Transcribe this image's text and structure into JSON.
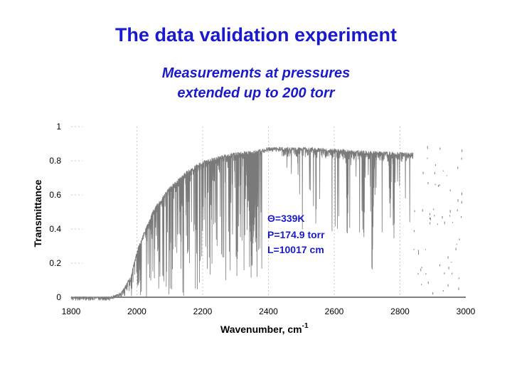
{
  "title": "The data validation experiment",
  "subtitle_lines": [
    "Measurements at pressures",
    "extended up to 200 torr"
  ],
  "colors": {
    "title": "#1a1acc",
    "trace": "#7a7a7a",
    "grid": "#c8c8c8",
    "annotation": "#1a1acc"
  },
  "chart_data": {
    "type": "line",
    "xlabel": "Wavenumber, cm",
    "xlabel_superscript": "-1",
    "ylabel": "Transmittance",
    "xlim": [
      1800,
      3000
    ],
    "ylim": [
      0,
      1
    ],
    "xticks": [
      1800,
      2000,
      2200,
      2400,
      2600,
      2800,
      3000
    ],
    "xtick_labels": [
      "1800",
      "2000",
      "2200",
      "2400",
      "2600",
      "2800",
      "3000"
    ],
    "yticks": [
      0,
      0.2,
      0.4,
      0.6,
      0.8,
      1
    ],
    "ytick_labels": [
      "0",
      "0.2",
      "0.4",
      "0.6",
      "0.8",
      "1"
    ],
    "grid": "vertical dashed at x ticks",
    "annotations": [
      "Θ=339K",
      "P=174.9 torr",
      "L=10017 cm"
    ],
    "envelope": {
      "x": [
        1800,
        1920,
        1950,
        1980,
        2000,
        2050,
        2100,
        2150,
        2200,
        2250,
        2300,
        2350,
        2380,
        2400,
        2500,
        2600,
        2700,
        2800,
        2840
      ],
      "y": [
        0.0,
        0.0,
        0.03,
        0.12,
        0.28,
        0.52,
        0.65,
        0.74,
        0.8,
        0.83,
        0.85,
        0.86,
        0.87,
        0.88,
        0.88,
        0.87,
        0.86,
        0.85,
        0.85
      ]
    },
    "absorption_bands": [
      {
        "x_center": 2350,
        "half_width": 18,
        "min_transmittance": 0.15
      },
      {
        "x_center": 2715,
        "half_width": 8,
        "min_transmittance": 0.08
      },
      {
        "x_center": 2640,
        "half_width": 6,
        "min_transmittance": 0.35
      },
      {
        "x_center": 2690,
        "half_width": 6,
        "min_transmittance": 0.3
      },
      {
        "x_center": 2782,
        "half_width": 5,
        "min_transmittance": 0.3
      },
      {
        "x_center": 2770,
        "half_width": 5,
        "min_transmittance": 0.35
      }
    ],
    "sparse_region": {
      "x_start": 2840,
      "x_end": 3000
    }
  }
}
